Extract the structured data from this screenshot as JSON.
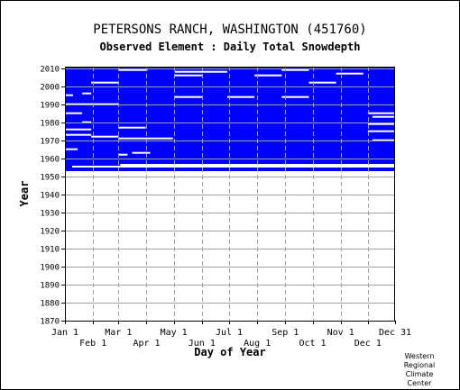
{
  "header": {
    "station": "PETERSONS RANCH, WASHINGTON   (451760)",
    "subtitle": "Observed Element : Daily Total Snowdepth"
  },
  "credit": [
    "Western",
    "Regional",
    "Climate",
    "Center"
  ],
  "chart_data": {
    "type": "heatmap",
    "xlabel": "Day of Year",
    "ylabel": "Year",
    "x_ticks_top_row": [
      "Jan 1",
      "Mar 1",
      "May 1",
      "Jul 1",
      "Sep 1",
      "Nov 1",
      "Dec 31"
    ],
    "x_ticks_bottom_row": [
      "Feb 1",
      "Apr 1",
      "Jun 1",
      "Aug 1",
      "Oct 1",
      "Dec 1"
    ],
    "y_ticks": [
      "1870",
      "1880",
      "1890",
      "1900",
      "1910",
      "1920",
      "1930",
      "1940",
      "1950",
      "1960",
      "1970",
      "1980",
      "1990",
      "2000",
      "2010"
    ],
    "ylim": [
      1870,
      2011
    ],
    "xlim": [
      1,
      365
    ],
    "grid": true,
    "colors": {
      "data": "#0000ff",
      "grid": "#a0a0a0",
      "background": "#ffffff"
    },
    "data_years": [
      1953,
      2010
    ],
    "full_coverage_years": [
      1958,
      2010
    ],
    "partial_coverage": [
      {
        "year": 1957,
        "doy_start": 1,
        "doy_end": 365
      },
      {
        "year": 1956,
        "doy_start": 1,
        "doy_end": 62
      },
      {
        "year": 1955,
        "doy_start": 1,
        "doy_end": 9
      },
      {
        "year": 1954,
        "doy_start": 1,
        "doy_end": 365
      },
      {
        "year": 1953,
        "doy_start": 1,
        "doy_end": 365
      }
    ],
    "gaps": [
      {
        "year": 2009,
        "doy_start": 60,
        "doy_end": 92
      },
      {
        "year": 2009,
        "doy_start": 240,
        "doy_end": 270
      },
      {
        "year": 2008,
        "doy_start": 122,
        "doy_end": 180
      },
      {
        "year": 2007,
        "doy_start": 300,
        "doy_end": 330
      },
      {
        "year": 2006,
        "doy_start": 122,
        "doy_end": 152
      },
      {
        "year": 2006,
        "doy_start": 210,
        "doy_end": 240
      },
      {
        "year": 2002,
        "doy_start": 270,
        "doy_end": 300
      },
      {
        "year": 2002,
        "doy_start": 30,
        "doy_end": 60
      },
      {
        "year": 1996,
        "doy_start": 20,
        "doy_end": 30
      },
      {
        "year": 1995,
        "doy_start": 1,
        "doy_end": 10
      },
      {
        "year": 1994,
        "doy_start": 122,
        "doy_end": 152
      },
      {
        "year": 1994,
        "doy_start": 180,
        "doy_end": 210
      },
      {
        "year": 1994,
        "doy_start": 240,
        "doy_end": 270
      },
      {
        "year": 1990,
        "doy_start": 1,
        "doy_end": 60
      },
      {
        "year": 1985,
        "doy_start": 1,
        "doy_end": 20
      },
      {
        "year": 1985,
        "doy_start": 335,
        "doy_end": 365
      },
      {
        "year": 1983,
        "doy_start": 340,
        "doy_end": 365
      },
      {
        "year": 1980,
        "doy_start": 20,
        "doy_end": 30
      },
      {
        "year": 1979,
        "doy_start": 335,
        "doy_end": 365
      },
      {
        "year": 1977,
        "doy_start": 60,
        "doy_end": 90
      },
      {
        "year": 1976,
        "doy_start": 1,
        "doy_end": 30
      },
      {
        "year": 1975,
        "doy_start": 335,
        "doy_end": 365
      },
      {
        "year": 1973,
        "doy_start": 1,
        "doy_end": 30
      },
      {
        "year": 1972,
        "doy_start": 30,
        "doy_end": 60
      },
      {
        "year": 1971,
        "doy_start": 60,
        "doy_end": 120
      },
      {
        "year": 1970,
        "doy_start": 340,
        "doy_end": 365
      },
      {
        "year": 1965,
        "doy_start": 1,
        "doy_end": 15
      },
      {
        "year": 1963,
        "doy_start": 75,
        "doy_end": 95
      },
      {
        "year": 1962,
        "doy_start": 60,
        "doy_end": 70
      }
    ]
  }
}
